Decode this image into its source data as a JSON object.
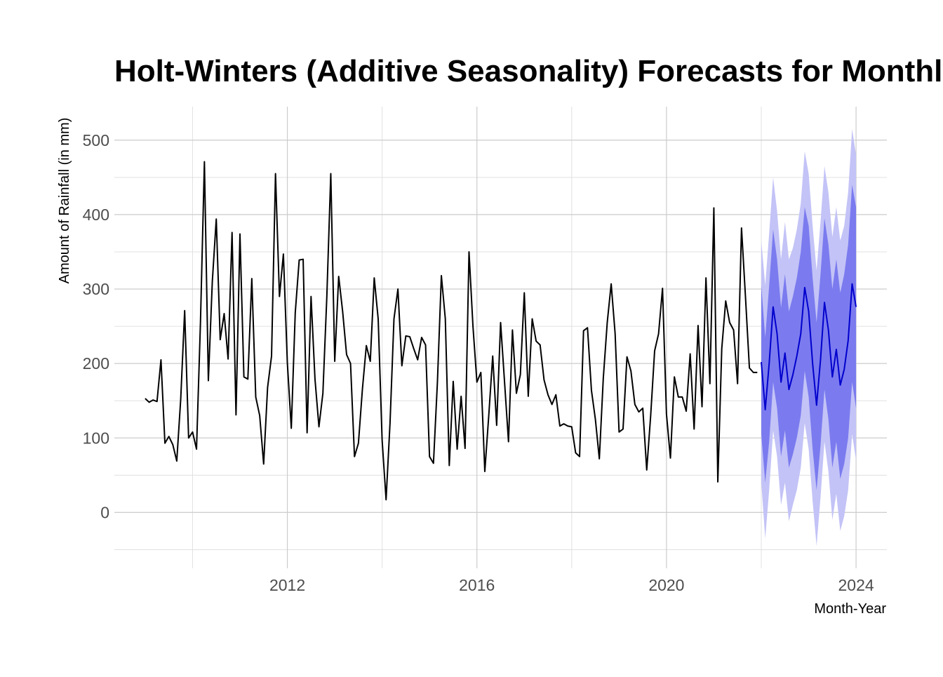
{
  "chart_data": {
    "type": "line",
    "title": "Holt-Winters (Additive Seasonality) Forecasts for Monthly To",
    "xlabel": "Month-Year",
    "ylabel": "Amount of Rainfall (in mm)",
    "x_ticks": [
      "2012",
      "2016",
      "2020",
      "2024"
    ],
    "x_tick_values": [
      2012,
      2016,
      2020,
      2024
    ],
    "y_ticks": [
      "0",
      "100",
      "200",
      "300",
      "400",
      "500"
    ],
    "y_tick_values": [
      0,
      100,
      200,
      300,
      400,
      500
    ],
    "xlim": [
      2008.35,
      2024.65
    ],
    "ylim": [
      -75,
      545
    ],
    "grid": true,
    "series": [
      {
        "role": "observed",
        "color": "#000000",
        "start": 2009.0,
        "step": 0.08333,
        "values": [
          153,
          148,
          151,
          149,
          205,
          93,
          102,
          91,
          69,
          152,
          271,
          100,
          108,
          85,
          255,
          471,
          177,
          310,
          394,
          232,
          267,
          206,
          376,
          131,
          374,
          182,
          179,
          314,
          155,
          130,
          65,
          168,
          210,
          455,
          290,
          347,
          201,
          113,
          268,
          339,
          340,
          107,
          290,
          179,
          115,
          160,
          290,
          455,
          203,
          317,
          270,
          212,
          200,
          75,
          93,
          165,
          224,
          203,
          315,
          260,
          97,
          17,
          120,
          260,
          300,
          197,
          237,
          236,
          220,
          205,
          235,
          225,
          75,
          66,
          175,
          318,
          260,
          63,
          176,
          85,
          156,
          86,
          350,
          250,
          175,
          188,
          55,
          130,
          210,
          117,
          255,
          175,
          95,
          245,
          160,
          185,
          295,
          156,
          260,
          230,
          225,
          178,
          158,
          145,
          158,
          116,
          119,
          116,
          115,
          80,
          75,
          244,
          248,
          164,
          125,
          72,
          180,
          255,
          307,
          240,
          108,
          112,
          209,
          190,
          145,
          135,
          140,
          57,
          130,
          217,
          240,
          301,
          132,
          73,
          182,
          155,
          155,
          136,
          213,
          112,
          251,
          142,
          315,
          173,
          409,
          41,
          220,
          284,
          255,
          245,
          173,
          382,
          290,
          194,
          188,
          188
        ]
      }
    ],
    "forecast": {
      "color": "#0000cd",
      "band80_color": "#7b7bef",
      "band95_color": "#c3c3f7",
      "start": 2022.0,
      "step": 0.08333,
      "mean": [
        202,
        138,
        200,
        276,
        240,
        175,
        214,
        165,
        185,
        210,
        240,
        302,
        270,
        200,
        144,
        205,
        282,
        245,
        182,
        219,
        171,
        192,
        231,
        307,
        276
      ],
      "lo80": [
        105,
        40,
        95,
        175,
        140,
        75,
        110,
        60,
        78,
        100,
        130,
        190,
        155,
        85,
        30,
        90,
        165,
        125,
        60,
        95,
        45,
        65,
        100,
        175,
        140
      ],
      "hi80": [
        305,
        235,
        305,
        380,
        340,
        275,
        320,
        270,
        290,
        315,
        350,
        410,
        385,
        315,
        255,
        320,
        395,
        360,
        300,
        340,
        295,
        320,
        360,
        440,
        410
      ],
      "lo95": [
        40,
        -35,
        30,
        110,
        75,
        10,
        40,
        -12,
        10,
        30,
        60,
        120,
        85,
        15,
        -45,
        20,
        95,
        55,
        -10,
        25,
        -25,
        -5,
        30,
        105,
        70
      ],
      "hi95": [
        365,
        305,
        375,
        450,
        405,
        340,
        390,
        340,
        355,
        380,
        415,
        485,
        455,
        385,
        325,
        390,
        465,
        430,
        370,
        410,
        365,
        385,
        430,
        515,
        480
      ]
    }
  }
}
